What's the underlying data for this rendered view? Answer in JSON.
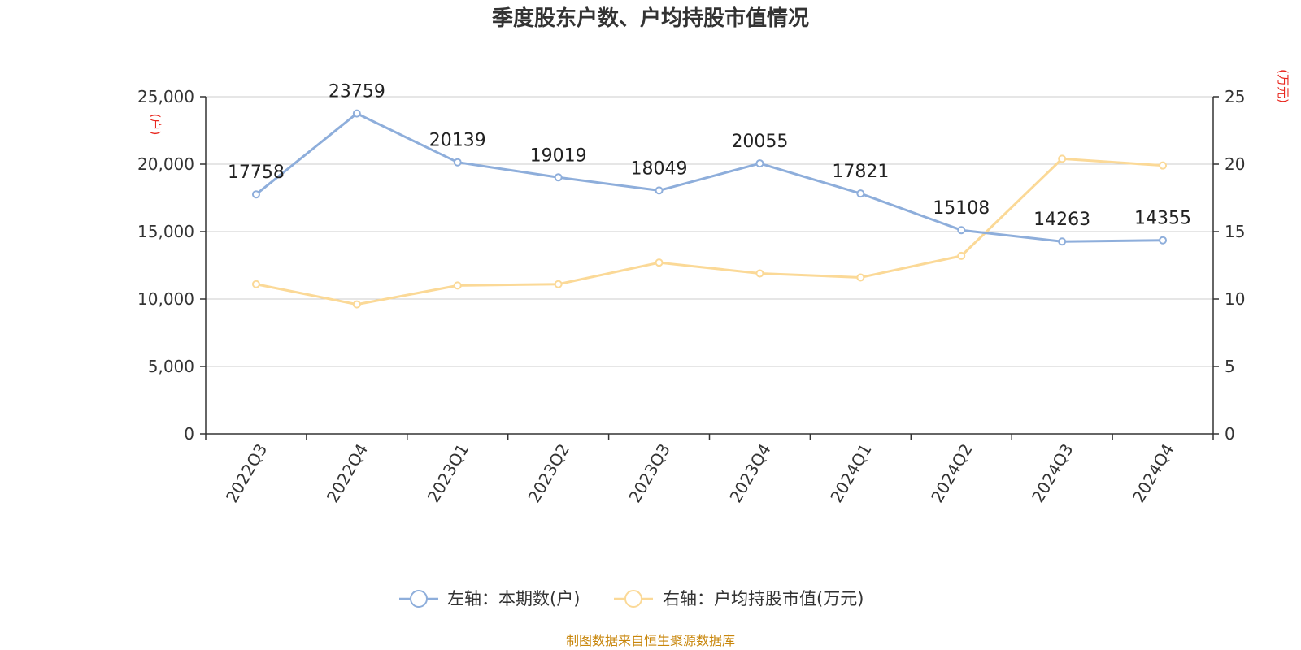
{
  "chart_data": {
    "type": "line",
    "title": "季度股东户数、户均持股市值情况",
    "categories": [
      "2022Q3",
      "2022Q4",
      "2023Q1",
      "2023Q2",
      "2023Q3",
      "2023Q4",
      "2024Q1",
      "2024Q2",
      "2024Q3",
      "2024Q4"
    ],
    "left_axis": {
      "unit": "(户)",
      "ylim": [
        0,
        25000
      ],
      "ticks": [
        "0",
        "5,000",
        "10,000",
        "15,000",
        "20,000",
        "25,000"
      ]
    },
    "right_axis": {
      "unit": "(万元)",
      "ylim": [
        0,
        25
      ],
      "ticks": [
        "0",
        "5",
        "10",
        "15",
        "20",
        "25"
      ]
    },
    "series": [
      {
        "name": "左轴：本期数(户)",
        "axis": "left",
        "color": "#8eaedb",
        "values": [
          17758,
          23759,
          20139,
          19019,
          18049,
          20055,
          17821,
          15108,
          14263,
          14355
        ],
        "labels": [
          "17758",
          "23759",
          "20139",
          "19019",
          "18049",
          "20055",
          "17821",
          "15108",
          "14263",
          "14355"
        ]
      },
      {
        "name": "右轴：户均持股市值(万元)",
        "axis": "right",
        "color": "#fbd997",
        "values": [
          11.1,
          9.6,
          11.0,
          11.1,
          12.7,
          11.9,
          11.6,
          13.2,
          20.4,
          19.9
        ]
      }
    ],
    "grid": true,
    "legend_position": "bottom-center",
    "unit_color": "#e8281f"
  },
  "source_note": "制图数据来自恒生聚源数据库",
  "source_color": "#c8860b"
}
